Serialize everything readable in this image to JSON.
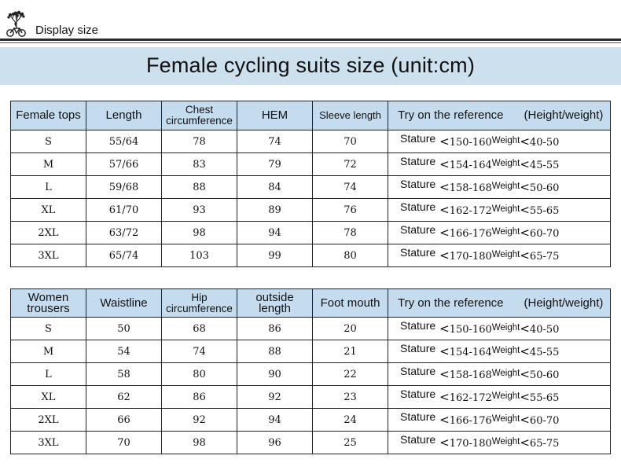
{
  "header": {
    "title": "Display size",
    "logo_icon": "cyclist-tree-logo-icon"
  },
  "banner": {
    "title": "Female cycling suits size (unit:cm)"
  },
  "tops_table": {
    "headers": {
      "col1": "Female tops",
      "col2": "Length",
      "col3_line1": "Chest",
      "col3_line2": "circumference",
      "col4": "HEM",
      "col5": "Sleeve length",
      "col6_a": "Try on the reference",
      "col6_b": "(Height/weight)"
    },
    "rows": [
      {
        "size": "S",
        "length": "55/64",
        "chest": "78",
        "hem": "74",
        "sleeve": "70",
        "stature_label": "Stature",
        "stature": "150-160",
        "weight_label": "Weight",
        "weight": "40-50"
      },
      {
        "size": "M",
        "length": "57/66",
        "chest": "83",
        "hem": "79",
        "sleeve": "72",
        "stature_label": "Stature",
        "stature": "154-164",
        "weight_label": "Weight",
        "weight": "45-55"
      },
      {
        "size": "L",
        "length": "59/68",
        "chest": "88",
        "hem": "84",
        "sleeve": "74",
        "stature_label": "Stature",
        "stature": "158-168",
        "weight_label": "Weight",
        "weight": "50-60"
      },
      {
        "size": "XL",
        "length": "61/70",
        "chest": "93",
        "hem": "89",
        "sleeve": "76",
        "stature_label": "Stature",
        "stature": "162-172",
        "weight_label": "Weight",
        "weight": "55-65"
      },
      {
        "size": "2XL",
        "length": "63/72",
        "chest": "98",
        "hem": "94",
        "sleeve": "78",
        "stature_label": "Stature",
        "stature": "166-176",
        "weight_label": "Weight",
        "weight": "60-70"
      },
      {
        "size": "3XL",
        "length": "65/74",
        "chest": "103",
        "hem": "99",
        "sleeve": "80",
        "stature_label": "Stature",
        "stature": "170-180",
        "weight_label": "Weight",
        "weight": "65-75"
      }
    ]
  },
  "trousers_table": {
    "headers": {
      "col1_line1": "Women",
      "col1_line2": "trousers",
      "col2": "Waistline",
      "col3_line1": "Hip",
      "col3_line2": "circumference",
      "col4_line1": "outside",
      "col4_line2": "length",
      "col5": "Foot mouth",
      "col6_a": "Try on the reference",
      "col6_b": "(Height/weight)"
    },
    "rows": [
      {
        "size": "S",
        "waist": "50",
        "hip": "68",
        "outside": "86",
        "foot": "20",
        "stature_label": "Stature",
        "stature": "150-160",
        "weight_label": "Weight",
        "weight": "40-50"
      },
      {
        "size": "M",
        "waist": "54",
        "hip": "74",
        "outside": "88",
        "foot": "21",
        "stature_label": "Stature",
        "stature": "154-164",
        "weight_label": "Weight",
        "weight": "45-55"
      },
      {
        "size": "L",
        "waist": "58",
        "hip": "80",
        "outside": "90",
        "foot": "22",
        "stature_label": "Stature",
        "stature": "158-168",
        "weight_label": "Weight",
        "weight": "50-60"
      },
      {
        "size": "XL",
        "waist": "62",
        "hip": "86",
        "outside": "92",
        "foot": "23",
        "stature_label": "Stature",
        "stature": "162-172",
        "weight_label": "Weight",
        "weight": "55-65"
      },
      {
        "size": "2XL",
        "waist": "66",
        "hip": "92",
        "outside": "94",
        "foot": "24",
        "stature_label": "Stature",
        "stature": "166-176",
        "weight_label": "Weight",
        "weight": "60-70"
      },
      {
        "size": "3XL",
        "waist": "70",
        "hip": "98",
        "outside": "96",
        "foot": "25",
        "stature_label": "Stature",
        "stature": "170-180",
        "weight_label": "Weight",
        "weight": "65-75"
      }
    ]
  },
  "colors": {
    "header_fill": "#c5dcef",
    "banner_fill": "#cde0ee",
    "rule": "#2b2b2b"
  }
}
